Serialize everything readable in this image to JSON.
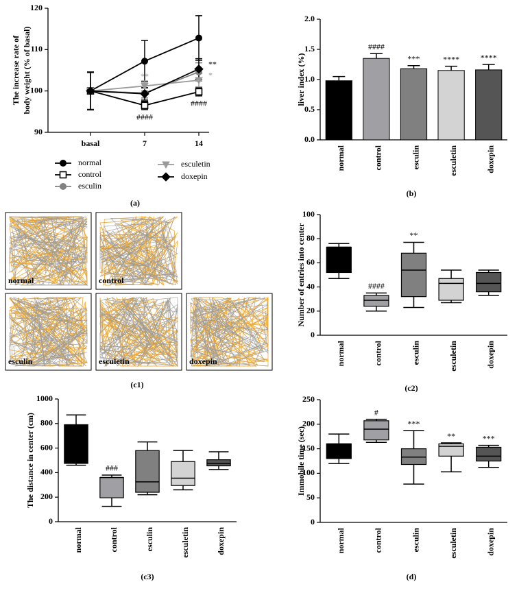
{
  "chart_data": [
    {
      "type": "line",
      "panel_label": "(a)",
      "y_label": [
        "The increase rate of",
        "body weight (% of basal)"
      ],
      "categories": [
        "basal",
        "7",
        "14"
      ],
      "ylim": [
        90,
        120
      ],
      "yticks": [
        90,
        100,
        110,
        120
      ],
      "series": [
        {
          "name": "normal",
          "color": "#000000",
          "fill": "#000000",
          "marker": "circle",
          "values": [
            100,
            107.2,
            112.8
          ],
          "errors": [
            4.6,
            5.0,
            5.4
          ],
          "annotations": [
            null,
            null,
            null
          ]
        },
        {
          "name": "control",
          "color": "#000000",
          "fill": "#ffffff",
          "marker": "square",
          "values": [
            100,
            96.5,
            99.8
          ],
          "errors": [
            4.5,
            1.0,
            1.0
          ],
          "annotations": [
            null,
            "####",
            "####"
          ]
        },
        {
          "name": "esculin",
          "color": "#808080",
          "fill": "#808080",
          "marker": "circle",
          "values": [
            100,
            99.5,
            104.6
          ],
          "errors": [
            4.5,
            1.2,
            2.2
          ],
          "annotations": [
            null,
            null,
            null
          ]
        },
        {
          "name": "esculetin",
          "color": "#9a9a9a",
          "fill": "#9a9a9a",
          "marker": "triangle-down",
          "values": [
            100,
            101.2,
            102.6
          ],
          "errors": [
            4.4,
            1.2,
            1.6
          ],
          "annotations": [
            null,
            "**",
            "*"
          ]
        },
        {
          "name": "doxepin",
          "color": "#000000",
          "fill": "#000000",
          "marker": "diamond",
          "values": [
            100,
            99.3,
            105.3
          ],
          "errors": [
            4.5,
            1.5,
            2.5
          ],
          "annotations": [
            null,
            null,
            "**"
          ]
        }
      ]
    },
    {
      "type": "bar",
      "panel_label": "(b)",
      "y_label": "liver index (%)",
      "categories": [
        "normal",
        "control",
        "esculin",
        "esculetin",
        "doxepin"
      ],
      "values": [
        0.98,
        1.35,
        1.18,
        1.15,
        1.16
      ],
      "errors": [
        0.07,
        0.08,
        0.05,
        0.07,
        0.09
      ],
      "colors": [
        "#000000",
        "#a0a0a4",
        "#808080",
        "#d3d3d3",
        "#555555"
      ],
      "annotations": [
        null,
        "####",
        "***",
        "****",
        "****"
      ],
      "ylim": [
        0,
        2.0
      ],
      "yticks": [
        {
          "value": 0,
          "label": "0.0"
        },
        {
          "value": 0.5,
          "label": "0.5"
        },
        {
          "value": 1.0,
          "label": "1.0"
        },
        {
          "value": 1.5,
          "label": "1.5"
        },
        {
          "value": 2.0,
          "label": "2.0"
        }
      ]
    },
    {
      "type": "box",
      "panel_label": "(c2)",
      "y_label": "Number of entries into center",
      "categories": [
        "normal",
        "control",
        "esculin",
        "esculetin",
        "doxepin"
      ],
      "min": [
        47,
        20,
        23,
        27,
        33
      ],
      "q1": [
        52,
        24,
        32,
        29,
        36
      ],
      "median": [
        73,
        29,
        54,
        43,
        43
      ],
      "q3": [
        73,
        33,
        68,
        47,
        52
      ],
      "max": [
        76,
        35,
        77,
        54,
        54
      ],
      "colors": [
        "#000000",
        "#a0a0a4",
        "#808080",
        "#d3d3d3",
        "#555555"
      ],
      "annotations": [
        null,
        "####",
        "**",
        null,
        null
      ],
      "ylim": [
        0,
        100
      ],
      "yticks": [
        0,
        20,
        40,
        60,
        80,
        100
      ]
    },
    {
      "type": "box",
      "panel_label": "(c3)",
      "y_label": "The distance in center (cm)",
      "categories": [
        "normal",
        "control",
        "esculin",
        "esculetin",
        "doxepin"
      ],
      "min": [
        460,
        125,
        220,
        260,
        425
      ],
      "q1": [
        475,
        195,
        240,
        295,
        455
      ],
      "median": [
        790,
        360,
        325,
        355,
        475
      ],
      "q3": [
        790,
        360,
        580,
        490,
        505
      ],
      "max": [
        870,
        380,
        650,
        580,
        570
      ],
      "colors": [
        "#000000",
        "#a0a0a4",
        "#808080",
        "#d3d3d3",
        "#555555"
      ],
      "annotations": [
        null,
        "###",
        null,
        null,
        null
      ],
      "ylim": [
        0,
        1000
      ],
      "yticks": [
        0,
        200,
        400,
        600,
        800,
        1000
      ]
    },
    {
      "type": "box",
      "panel_label": "(d)",
      "y_label": "Immobile time (sec)",
      "categories": [
        "normal",
        "control",
        "esculin",
        "esculetin",
        "doxepin"
      ],
      "min": [
        120,
        163,
        78,
        103,
        112
      ],
      "q1": [
        130,
        168,
        118,
        135,
        125
      ],
      "median": [
        160,
        190,
        133,
        155,
        135
      ],
      "q3": [
        160,
        207,
        150,
        160,
        153
      ],
      "max": [
        180,
        210,
        187,
        162,
        157
      ],
      "colors": [
        "#000000",
        "#a0a0a4",
        "#808080",
        "#d3d3d3",
        "#555555"
      ],
      "annotations": [
        "",
        "#",
        "***",
        "**",
        "***"
      ],
      "ylim": [
        0,
        250
      ],
      "yticks": [
        0,
        50,
        100,
        150,
        200,
        250
      ]
    }
  ],
  "trajectory_panel": {
    "panel_label": "(c1)",
    "labels": [
      "normal",
      "control",
      "esculin",
      "esculetin",
      "doxepin"
    ]
  }
}
